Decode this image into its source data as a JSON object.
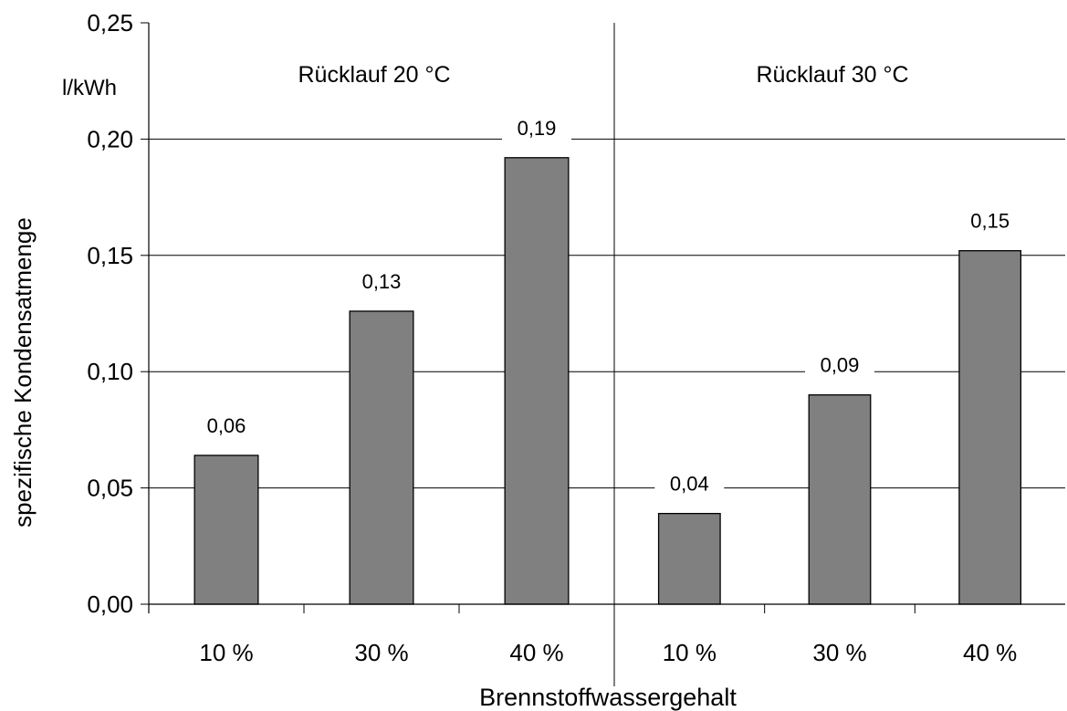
{
  "chart_data": {
    "type": "bar",
    "ylabel": "spezifische Kondensatmenge",
    "yunit": "l/kWh",
    "xlabel": "Brennstoffwassergehalt",
    "ylim": [
      0,
      0.25
    ],
    "yticks": [
      "0,00",
      "0,05",
      "0,10",
      "0,15",
      "0,20",
      "0,25"
    ],
    "grid": true,
    "bar_color": "#808080",
    "panels": [
      {
        "title": "Rücklauf 20 °C",
        "categories": [
          "10 %",
          "30 %",
          "40 %"
        ],
        "values": [
          0.064,
          0.126,
          0.192
        ],
        "labels": [
          "0,06",
          "0,13",
          "0,19"
        ]
      },
      {
        "title": "Rücklauf 30 °C",
        "categories": [
          "10 %",
          "30 %",
          "40 %"
        ],
        "values": [
          0.039,
          0.09,
          0.152
        ],
        "labels": [
          "0,04",
          "0,09",
          "0,15"
        ]
      }
    ]
  }
}
